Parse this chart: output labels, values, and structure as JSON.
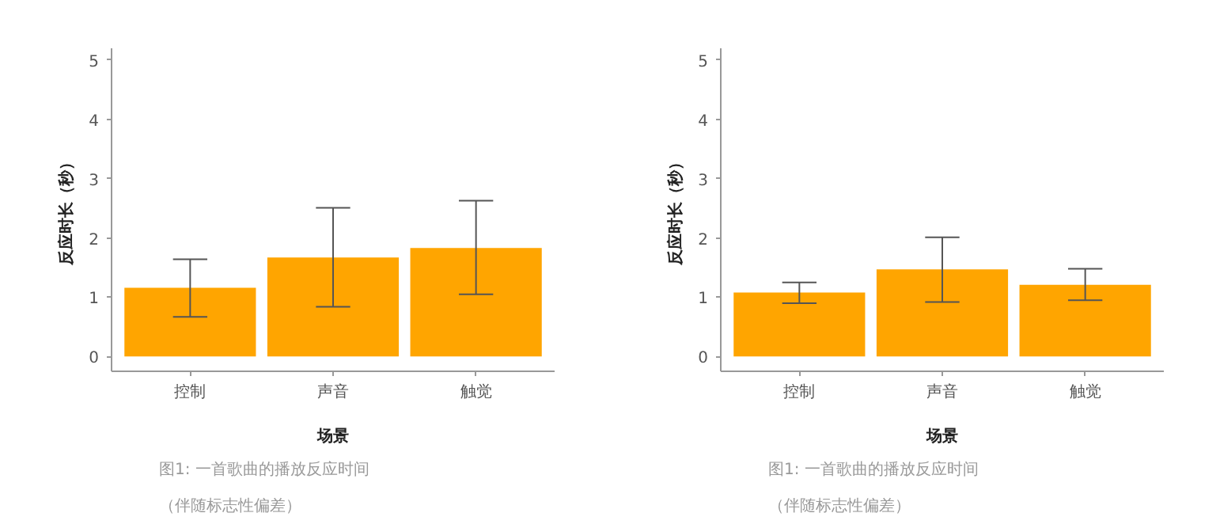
{
  "chart_data": [
    {
      "type": "bar",
      "xlabel": "场景",
      "ylabel": "反应时长（秒）",
      "categories": [
        "控制",
        "声音",
        "触觉"
      ],
      "values": [
        1.16,
        1.67,
        1.83
      ],
      "errors": [
        [
          0.67,
          1.64
        ],
        [
          0.84,
          2.51
        ],
        [
          1.05,
          2.63
        ]
      ],
      "color": "#ffa500",
      "ylim": [
        -0.25,
        5.2
      ],
      "yticks": [
        0,
        1,
        2,
        3,
        4,
        5
      ],
      "grid": false,
      "annotations": [
        "图1: 一首歌曲的播放反应时间",
        "（伴随标志性偏差）"
      ]
    },
    {
      "type": "bar",
      "xlabel": "场景",
      "ylabel": "反应时长（秒）",
      "categories": [
        "控制",
        "声音",
        "触觉"
      ],
      "values": [
        1.08,
        1.47,
        1.21
      ],
      "errors": [
        [
          0.9,
          1.25
        ],
        [
          0.92,
          2.01
        ],
        [
          0.95,
          1.48
        ]
      ],
      "color": "#ffa500",
      "ylim": [
        -0.25,
        5.2
      ],
      "yticks": [
        0,
        1,
        2,
        3,
        4,
        5
      ],
      "grid": false,
      "annotations": [
        "图1: 一首歌曲的播放反应时间",
        "（伴随标志性偏差）"
      ]
    }
  ]
}
